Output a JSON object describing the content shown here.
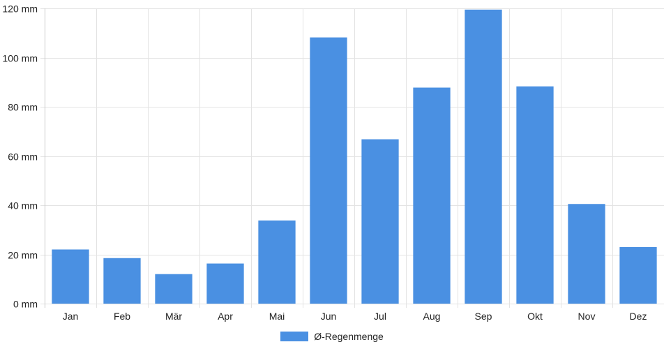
{
  "chart_data": {
    "type": "bar",
    "categories": [
      "Jan",
      "Feb",
      "Mär",
      "Apr",
      "Mai",
      "Jun",
      "Jul",
      "Aug",
      "Sep",
      "Okt",
      "Nov",
      "Dez"
    ],
    "series": [
      {
        "name": "Ø-Regenmenge",
        "values": [
          22,
          18.5,
          12,
          16.3,
          33.8,
          108.2,
          66.8,
          87.8,
          119.5,
          88.3,
          40.5,
          23
        ]
      }
    ],
    "ylim": [
      0,
      120
    ],
    "yticks": [
      0,
      20,
      40,
      60,
      80,
      100,
      120
    ],
    "y_unit": "mm",
    "grid": true,
    "legend_position": "bottom-center",
    "colors": {
      "bar": "#4a90e2",
      "grid": "#e3e3e3",
      "axis": "#c8c8c8"
    }
  }
}
